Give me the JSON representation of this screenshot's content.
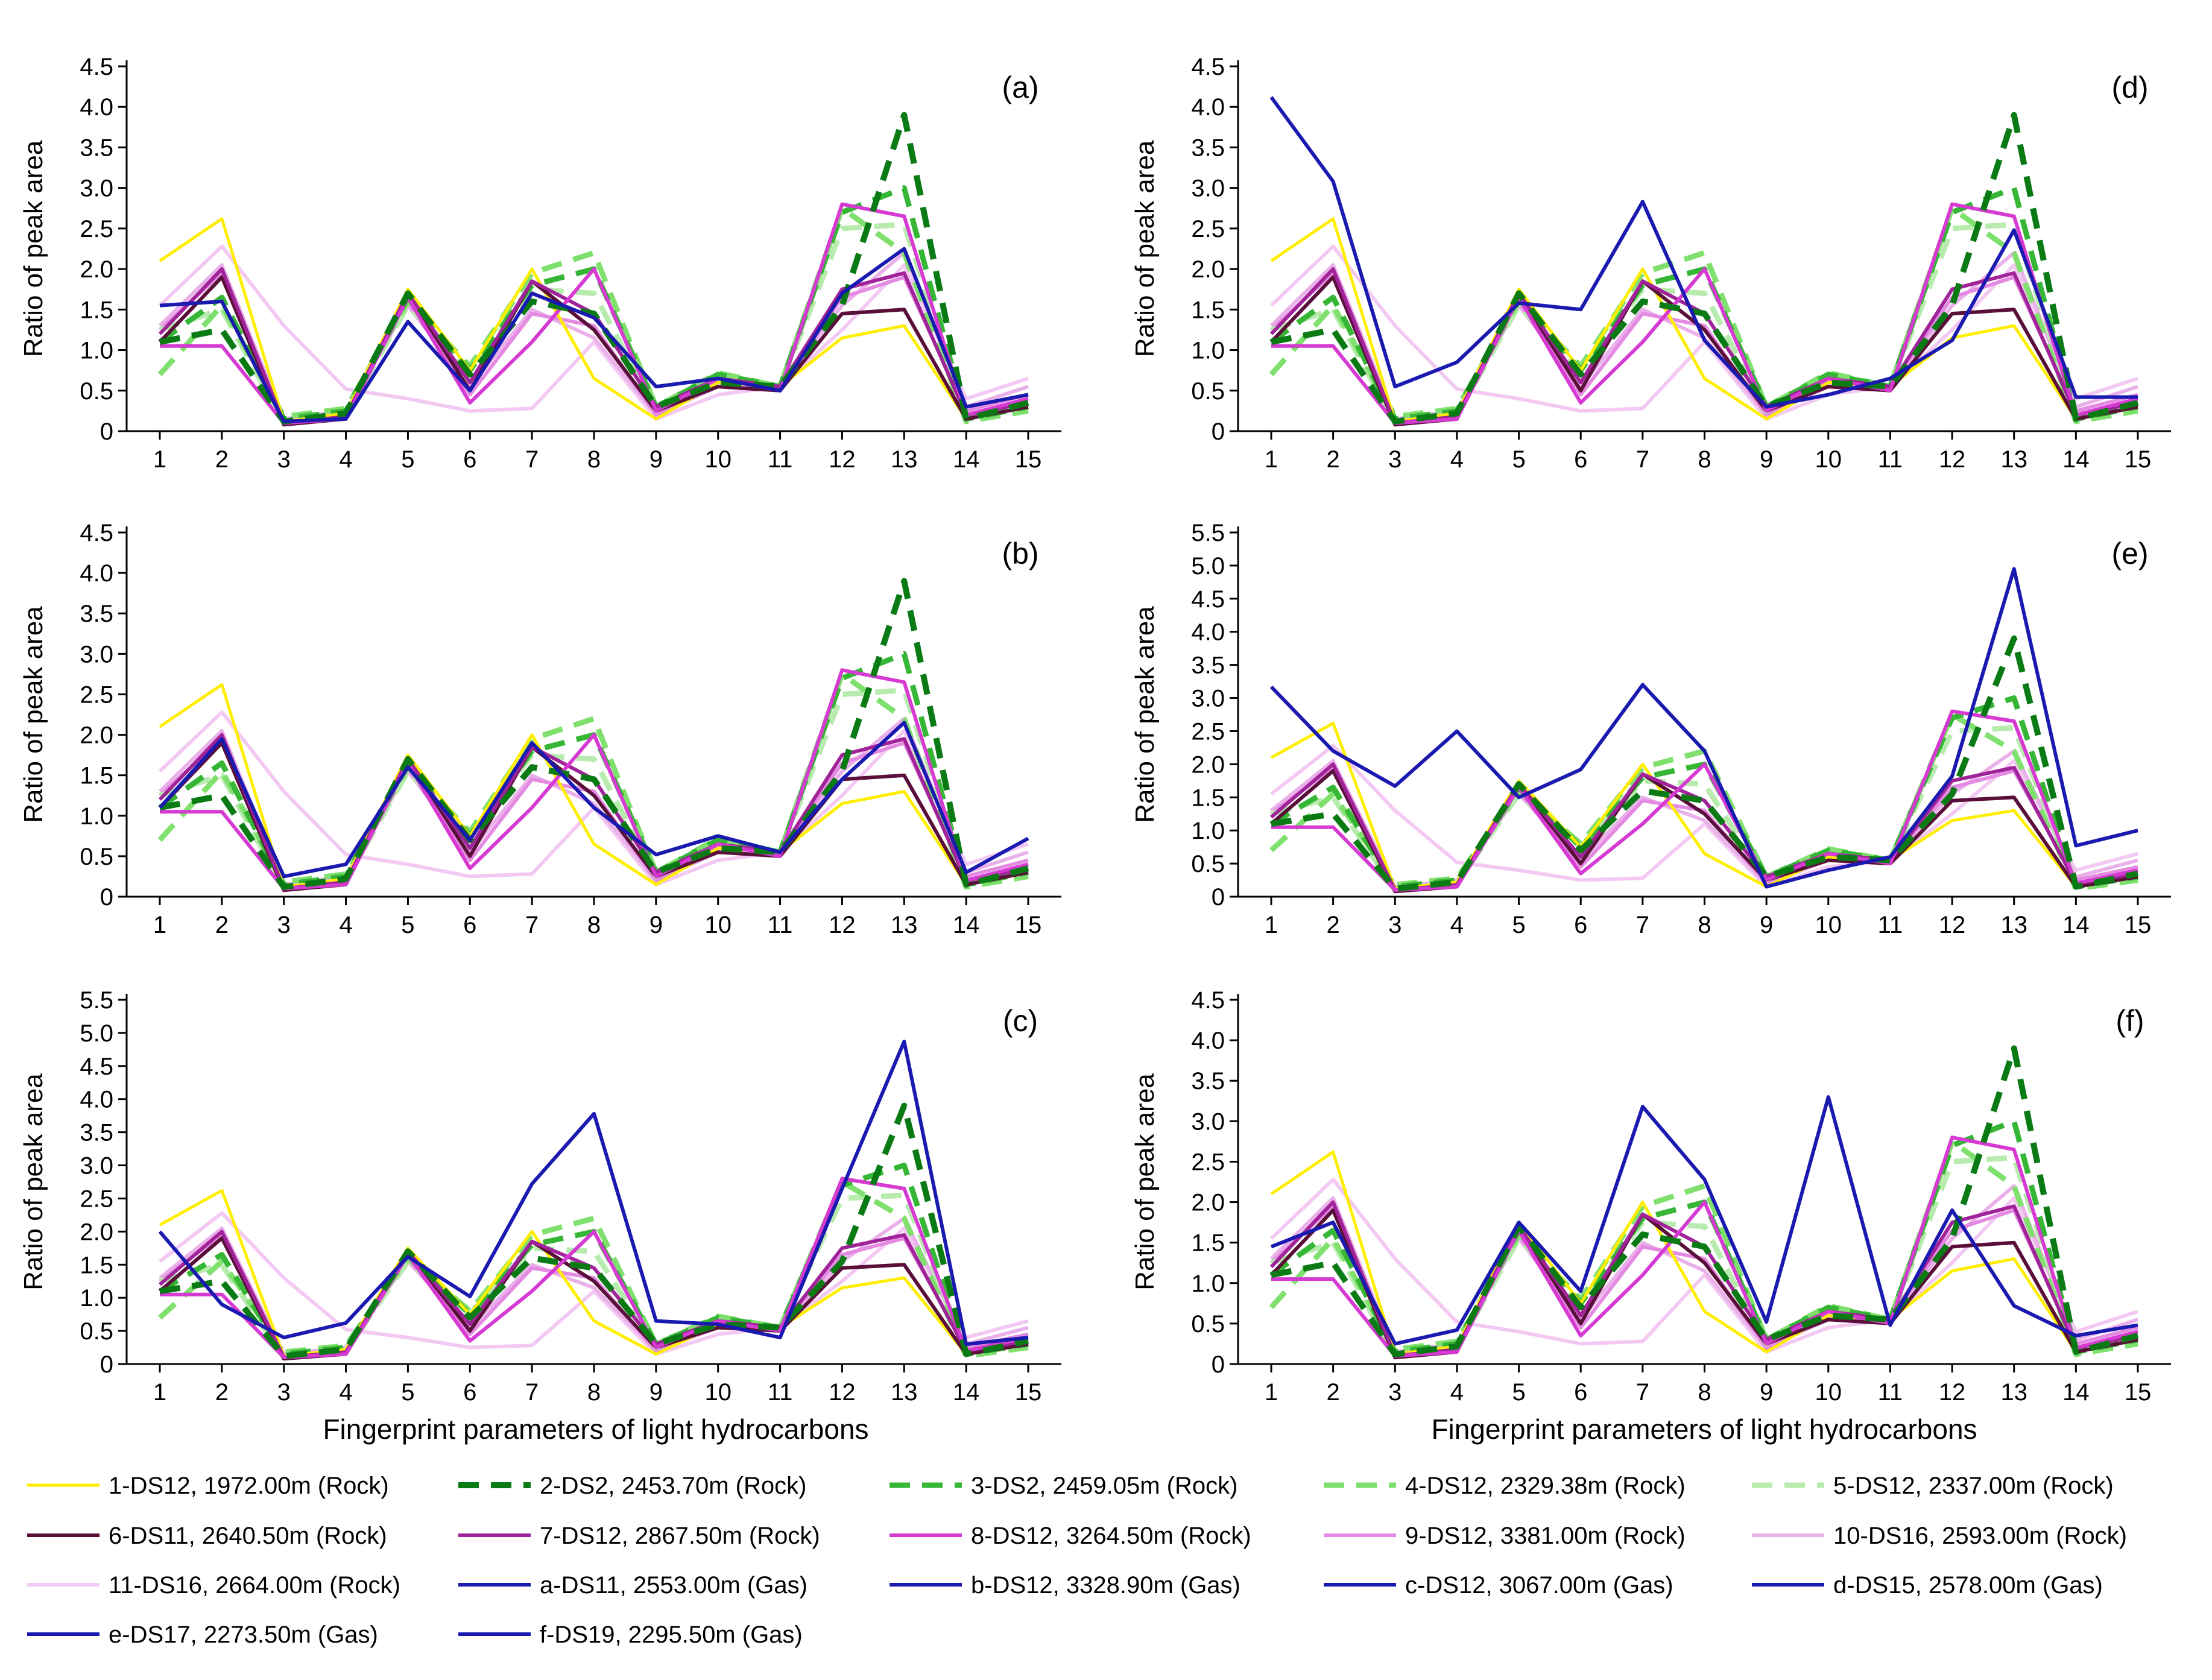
{
  "figure": {
    "xlabel": "Fingerprint parameters of light hydrocarbons",
    "ylabel": "Ratio of peak area"
  },
  "legend": [
    {
      "label": "1-DS12, 1972.00m (Rock)",
      "color": "#ffee00",
      "dash": "solid",
      "width": 5
    },
    {
      "label": "2-DS2, 2453.70m (Rock)",
      "color": "#0a7a14",
      "dash": "dashed",
      "width": 10
    },
    {
      "label": "3-DS2, 2459.05m (Rock)",
      "color": "#35b635",
      "dash": "dashed",
      "width": 9
    },
    {
      "label": "4-DS12, 2329.38m (Rock)",
      "color": "#7fe06d",
      "dash": "dashed",
      "width": 9
    },
    {
      "label": "5-DS12, 2337.00m (Rock)",
      "color": "#b8ecae",
      "dash": "dashed",
      "width": 9
    },
    {
      "label": "6-DS11, 2640.50m (Rock)",
      "color": "#5a0f3a",
      "dash": "solid",
      "width": 6
    },
    {
      "label": "7-DS12, 2867.50m (Rock)",
      "color": "#a0239a",
      "dash": "solid",
      "width": 6
    },
    {
      "label": "8-DS12, 3264.50m (Rock)",
      "color": "#d63ad2",
      "dash": "solid",
      "width": 6
    },
    {
      "label": "9-DS12, 3381.00m (Rock)",
      "color": "#e58ae2",
      "dash": "solid",
      "width": 6
    },
    {
      "label": "10-DS16, 2593.00m (Rock)",
      "color": "#eab0ea",
      "dash": "solid",
      "width": 6
    },
    {
      "label": "11-DS16, 2664.00m (Rock)",
      "color": "#f3c9f3",
      "dash": "solid",
      "width": 6
    },
    {
      "label": "a-DS11, 2553.00m (Gas)",
      "color": "#1a1ab0",
      "dash": "solid",
      "width": 6
    },
    {
      "label": "b-DS12, 3328.90m (Gas)",
      "color": "#1a1ab0",
      "dash": "solid",
      "width": 6
    },
    {
      "label": "c-DS12, 3067.00m (Gas)",
      "color": "#1a1ab0",
      "dash": "solid",
      "width": 6
    },
    {
      "label": "d-DS15, 2578.00m (Gas)",
      "color": "#1a1ab0",
      "dash": "solid",
      "width": 6
    },
    {
      "label": "e-DS17, 2273.50m (Gas)",
      "color": "#1a1ab0",
      "dash": "solid",
      "width": 6
    },
    {
      "label": "f-DS19, 2295.50m (Gas)",
      "color": "#1a1ab0",
      "dash": "solid",
      "width": 6
    }
  ],
  "rock_series": [
    {
      "name": "1-DS12, 1972.00m (Rock)",
      "values": [
        2.1,
        2.62,
        0.12,
        0.22,
        1.75,
        0.75,
        2.0,
        0.65,
        0.15,
        0.6,
        0.55,
        1.15,
        1.3,
        0.15,
        0.3
      ]
    },
    {
      "name": "2-DS2, 2453.70m (Rock)",
      "values": [
        1.1,
        1.25,
        0.12,
        0.22,
        1.7,
        0.7,
        1.6,
        1.45,
        0.3,
        0.6,
        0.55,
        1.55,
        3.9,
        0.15,
        0.35
      ]
    },
    {
      "name": "3-DS2, 2459.05m (Rock)",
      "values": [
        1.1,
        1.65,
        0.15,
        0.25,
        1.65,
        0.75,
        1.8,
        2.0,
        0.3,
        0.7,
        0.55,
        2.7,
        3.0,
        0.15,
        0.3
      ]
    },
    {
      "name": "4-DS12, 2329.38m (Rock)",
      "values": [
        0.7,
        1.55,
        0.18,
        0.28,
        1.6,
        0.8,
        1.95,
        2.2,
        0.3,
        0.72,
        0.55,
        2.75,
        2.2,
        0.12,
        0.25
      ]
    },
    {
      "name": "5-DS12, 2337.00m (Rock)",
      "values": [
        1.25,
        1.5,
        0.1,
        0.2,
        1.55,
        0.75,
        1.75,
        1.7,
        0.25,
        0.7,
        0.55,
        2.5,
        2.55,
        0.2,
        0.3
      ]
    },
    {
      "name": "6-DS11, 2640.50m (Rock)",
      "values": [
        1.1,
        1.9,
        0.08,
        0.15,
        1.7,
        0.5,
        1.85,
        1.25,
        0.25,
        0.55,
        0.5,
        1.45,
        1.5,
        0.15,
        0.3
      ]
    },
    {
      "name": "7-DS12, 2867.50m (Rock)",
      "values": [
        1.2,
        2.0,
        0.1,
        0.18,
        1.7,
        0.6,
        1.85,
        1.45,
        0.3,
        0.65,
        0.55,
        1.75,
        1.95,
        0.2,
        0.35
      ]
    },
    {
      "name": "8-DS12, 3264.50m (Rock)",
      "values": [
        1.05,
        1.05,
        0.1,
        0.15,
        1.65,
        0.35,
        1.1,
        2.0,
        0.25,
        0.65,
        0.5,
        2.8,
        2.65,
        0.2,
        0.4
      ]
    },
    {
      "name": "9-DS12, 3381.00m (Rock)",
      "values": [
        1.25,
        1.95,
        0.12,
        0.2,
        1.6,
        0.45,
        1.45,
        1.3,
        0.2,
        0.6,
        0.55,
        1.65,
        1.9,
        0.25,
        0.45
      ]
    },
    {
      "name": "10-DS16, 2593.00m (Rock)",
      "values": [
        1.3,
        2.05,
        0.15,
        0.25,
        1.55,
        0.55,
        1.5,
        1.15,
        0.2,
        0.55,
        0.55,
        1.55,
        2.2,
        0.3,
        0.55
      ]
    },
    {
      "name": "11-DS16, 2664.00m (Rock)",
      "values": [
        1.55,
        2.28,
        1.3,
        0.52,
        0.4,
        0.25,
        0.28,
        1.1,
        0.15,
        0.45,
        0.55,
        1.25,
        2.05,
        0.4,
        0.65
      ]
    }
  ],
  "panels": [
    {
      "label": "(a)",
      "gas_name": "a-DS11, 2553.00m (Gas)",
      "gas_values": [
        1.55,
        1.6,
        0.12,
        0.15,
        1.35,
        0.5,
        1.7,
        1.4,
        0.55,
        0.65,
        0.5,
        1.7,
        2.25,
        0.3,
        0.45
      ],
      "ymax": 4.5,
      "yticks": [
        "0",
        "0.5",
        "1.0",
        "1.5",
        "2.0",
        "2.5",
        "3.0",
        "3.5",
        "4.0",
        "4.5"
      ]
    },
    {
      "label": "(b)",
      "gas_name": "b-DS12, 3328.90m (Gas)",
      "gas_values": [
        1.1,
        1.95,
        0.25,
        0.4,
        1.6,
        0.7,
        1.9,
        1.1,
        0.52,
        0.75,
        0.55,
        1.45,
        2.15,
        0.3,
        0.72
      ],
      "ymax": 4.5,
      "yticks": [
        "0",
        "0.5",
        "1.0",
        "1.5",
        "2.0",
        "2.5",
        "3.0",
        "3.5",
        "4.0",
        "4.5"
      ]
    },
    {
      "label": "(c)",
      "gas_name": "c-DS12, 3067.00m (Gas)",
      "gas_values": [
        2.0,
        0.9,
        0.4,
        0.62,
        1.62,
        1.02,
        2.72,
        3.78,
        0.65,
        0.6,
        0.4,
        2.65,
        4.87,
        0.3,
        0.4
      ],
      "ymax": 5.5,
      "yticks": [
        "0",
        "0.5",
        "1.0",
        "1.5",
        "2.0",
        "2.5",
        "3.0",
        "3.5",
        "4.0",
        "4.5",
        "5.0",
        "5.5"
      ]
    },
    {
      "label": "(d)",
      "gas_name": "d-DS15, 2578.00m (Gas)",
      "gas_values": [
        4.12,
        3.08,
        0.55,
        0.85,
        1.58,
        1.5,
        2.83,
        1.12,
        0.3,
        0.45,
        0.65,
        1.12,
        2.48,
        0.42,
        0.42
      ],
      "ymax": 4.5,
      "yticks": [
        "0",
        "0.5",
        "1.0",
        "1.5",
        "2.0",
        "2.5",
        "3.0",
        "3.5",
        "4.0",
        "4.5"
      ]
    },
    {
      "label": "(e)",
      "gas_name": "e-DS17, 2273.50m (Gas)",
      "gas_values": [
        3.17,
        2.2,
        1.67,
        2.5,
        1.5,
        1.92,
        3.2,
        2.2,
        0.15,
        0.4,
        0.6,
        1.82,
        4.95,
        0.77,
        1.0
      ],
      "ymax": 5.5,
      "yticks": [
        "0",
        "0.5",
        "1.0",
        "1.5",
        "2.0",
        "2.5",
        "3.0",
        "3.5",
        "4.0",
        "4.5",
        "5.0",
        "5.5"
      ]
    },
    {
      "label": "(f)",
      "gas_name": "f-DS19, 2295.50m (Gas)",
      "gas_values": [
        1.45,
        1.75,
        0.25,
        0.42,
        1.75,
        0.9,
        3.18,
        2.28,
        0.52,
        3.3,
        0.48,
        1.9,
        0.72,
        0.35,
        0.48
      ],
      "ymax": 4.5,
      "yticks": [
        "0",
        "0.5",
        "1.0",
        "1.5",
        "2.0",
        "2.5",
        "3.0",
        "3.5",
        "4.0",
        "4.5"
      ]
    }
  ],
  "xticks": [
    "1",
    "2",
    "3",
    "4",
    "5",
    "6",
    "7",
    "8",
    "9",
    "10",
    "11",
    "12",
    "13",
    "14",
    "15"
  ],
  "chart_data": [
    {
      "type": "line",
      "title": "(a)",
      "xlabel": "",
      "ylabel": "Ratio of peak area",
      "x": [
        1,
        2,
        3,
        4,
        5,
        6,
        7,
        8,
        9,
        10,
        11,
        12,
        13,
        14,
        15
      ],
      "ylim": [
        0,
        4.5
      ],
      "series_note": "11 rock series (see rock_series) plus gas series a-DS11, 2553.00m (Gas)"
    },
    {
      "type": "line",
      "title": "(b)",
      "xlabel": "",
      "ylabel": "Ratio of peak area",
      "x": [
        1,
        2,
        3,
        4,
        5,
        6,
        7,
        8,
        9,
        10,
        11,
        12,
        13,
        14,
        15
      ],
      "ylim": [
        0,
        4.5
      ],
      "series_note": "11 rock series plus gas series b-DS12, 3328.90m (Gas)"
    },
    {
      "type": "line",
      "title": "(c)",
      "xlabel": "Fingerprint parameters of light hydrocarbons",
      "ylabel": "Ratio of peak area",
      "x": [
        1,
        2,
        3,
        4,
        5,
        6,
        7,
        8,
        9,
        10,
        11,
        12,
        13,
        14,
        15
      ],
      "ylim": [
        0,
        5.5
      ],
      "series_note": "11 rock series plus gas series c-DS12, 3067.00m (Gas)"
    },
    {
      "type": "line",
      "title": "(d)",
      "xlabel": "",
      "ylabel": "Ratio of peak area",
      "x": [
        1,
        2,
        3,
        4,
        5,
        6,
        7,
        8,
        9,
        10,
        11,
        12,
        13,
        14,
        15
      ],
      "ylim": [
        0,
        4.5
      ],
      "series_note": "11 rock series plus gas series d-DS15, 2578.00m (Gas)"
    },
    {
      "type": "line",
      "title": "(e)",
      "xlabel": "",
      "ylabel": "Ratio of peak area",
      "x": [
        1,
        2,
        3,
        4,
        5,
        6,
        7,
        8,
        9,
        10,
        11,
        12,
        13,
        14,
        15
      ],
      "ylim": [
        0,
        5.5
      ],
      "series_note": "11 rock series plus gas series e-DS17, 2273.50m (Gas)"
    },
    {
      "type": "line",
      "title": "(f)",
      "xlabel": "Fingerprint parameters of light hydrocarbons",
      "ylabel": "Ratio of peak area",
      "x": [
        1,
        2,
        3,
        4,
        5,
        6,
        7,
        8,
        9,
        10,
        11,
        12,
        13,
        14,
        15
      ],
      "ylim": [
        0,
        4.5
      ],
      "series_note": "11 rock series plus gas series f-DS19, 2295.50m (Gas)"
    }
  ]
}
